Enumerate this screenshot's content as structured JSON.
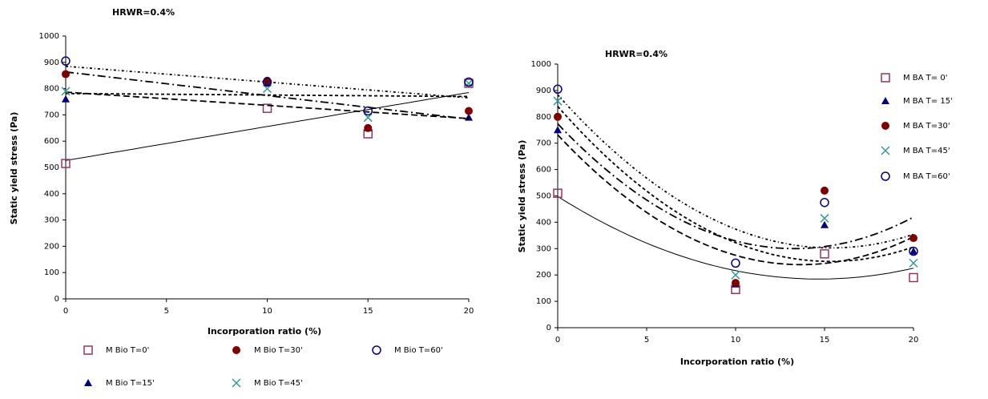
{
  "chart_data": [
    {
      "type": "scatter",
      "title": "HRWR=0.4%",
      "x_label": "Incorporation ratio (%)",
      "y_label": "Static yield stress (Pa)",
      "trendline": "linear",
      "x": [
        0,
        10,
        15,
        20
      ],
      "xlim": [
        0,
        20
      ],
      "xticks": [
        0,
        5,
        10,
        15,
        20
      ],
      "ylim": [
        0,
        1000
      ],
      "yticks": [
        0,
        100,
        200,
        300,
        400,
        500,
        600,
        700,
        800,
        900,
        1000
      ],
      "series": [
        {
          "name": "M Bio T=0'",
          "color": "#993366",
          "marker": "square-open",
          "values": [
            515,
            725,
            628,
            820
          ]
        },
        {
          "name": "M Bio T=15'",
          "color": "#000080",
          "marker": "triangle",
          "values": [
            760,
            820,
            650,
            690
          ]
        },
        {
          "name": "M Bio T=30'",
          "color": "#800000",
          "marker": "circle",
          "values": [
            855,
            830,
            650,
            715
          ]
        },
        {
          "name": "M Bio T=45'",
          "color": "#339999",
          "marker": "x",
          "values": [
            790,
            800,
            690,
            820
          ]
        },
        {
          "name": "M Bio T=60'",
          "color": "#000080",
          "marker": "circle-open",
          "values": [
            905,
            825,
            715,
            825
          ]
        }
      ]
    },
    {
      "type": "scatter",
      "title": "HRWR=0.4%",
      "x_label": "Incorporation ratio (%)",
      "y_label": "Static yield stress (Pa)",
      "trendline": "poly2",
      "x": [
        0,
        10,
        15,
        20
      ],
      "xlim": [
        0,
        20
      ],
      "xticks": [
        0,
        5,
        10,
        15,
        20
      ],
      "ylim": [
        0,
        1000
      ],
      "yticks": [
        0,
        100,
        200,
        300,
        400,
        500,
        600,
        700,
        800,
        900,
        1000
      ],
      "series": [
        {
          "name": "M BA T= 0'",
          "color": "#993366",
          "marker": "square-open",
          "values": [
            510,
            145,
            280,
            190
          ]
        },
        {
          "name": "M BA T= 15'",
          "color": "#000080",
          "marker": "triangle",
          "values": [
            750,
            165,
            390,
            290
          ]
        },
        {
          "name": "M BA T=30'",
          "color": "#800000",
          "marker": "circle",
          "values": [
            800,
            170,
            520,
            340
          ]
        },
        {
          "name": "M BA T=45'",
          "color": "#339999",
          "marker": "x",
          "values": [
            860,
            200,
            415,
            245
          ]
        },
        {
          "name": "M BA T=60'",
          "color": "#000080",
          "marker": "circle-open",
          "values": [
            905,
            245,
            475,
            290
          ]
        }
      ]
    }
  ]
}
